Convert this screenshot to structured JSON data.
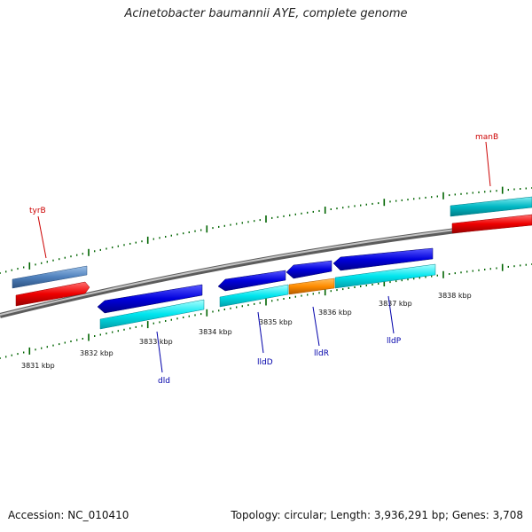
{
  "title": "Acinetobacter baumannii AYE, complete genome",
  "footer": {
    "accession": "Accession: NC_010410",
    "summary": "Topology: circular; Length: 3,936,291 bp; Genes: 3,708"
  },
  "colors": {
    "backbone": "#8c8c8c",
    "tick": "#006400",
    "forward_cds": "#0000dd",
    "cyan_feature": "#00e5ee",
    "orange_feature": "#ff8c00",
    "red_feature": "#ee0000",
    "steel_feature": "#4f81bd",
    "teal_feature": "#00b8c4",
    "label_red": "#cc0000",
    "label_blue": "#0000aa"
  },
  "ticks": {
    "labels": [
      "3831 kbp",
      "3832 kbp",
      "3833 kbp",
      "3834 kbp",
      "3835 kbp",
      "3836 kbp",
      "3837 kbp",
      "3838 kbp"
    ]
  },
  "genes": [
    {
      "name": "tyrB",
      "color": "label_red"
    },
    {
      "name": "manB",
      "color": "label_red"
    },
    {
      "name": "dld",
      "color": "label_blue"
    },
    {
      "name": "lldD",
      "color": "label_blue"
    },
    {
      "name": "lldR",
      "color": "label_blue"
    },
    {
      "name": "lldP",
      "color": "label_blue"
    }
  ]
}
